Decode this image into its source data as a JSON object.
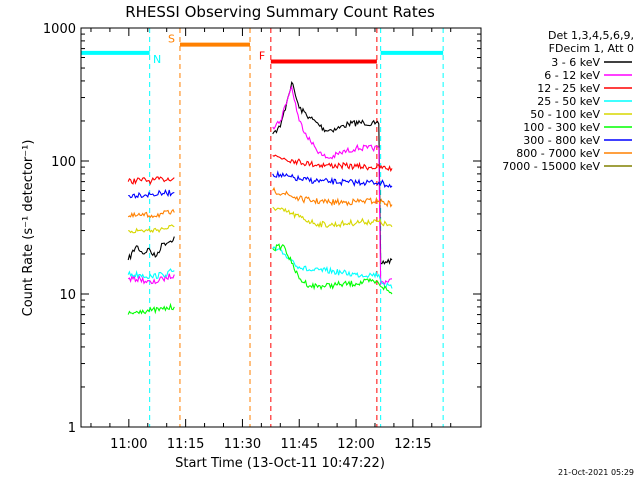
{
  "chart_data": {
    "type": "line",
    "title": "RHESSI Observing Summary Count Rates",
    "xlabel": "Start Time (13-Oct-11 10:47:22)",
    "ylabel": "Count Rate (s⁻¹ detector⁻¹)",
    "yscale": "log",
    "ylim": [
      1,
      1000
    ],
    "xlim": [
      "10:47:22",
      "12:33:00"
    ],
    "x_ticks": [
      "11:00",
      "11:15",
      "11:30",
      "11:45",
      "12:00",
      "12:15"
    ],
    "y_ticks": [
      "1",
      "10",
      "100",
      "1000"
    ],
    "legend_header": [
      "Det 1,3,4,5,6,9,",
      "FDecim 1, Att 0"
    ],
    "legend_position": "right",
    "footer": "21-Oct-2021 05:29",
    "series": [
      {
        "name": "3 - 6 keV",
        "color": "#000000",
        "points": [
          [
            "10:59:50",
            18
          ],
          [
            "11:02:00",
            23
          ],
          [
            "11:04:00",
            20
          ],
          [
            "11:05:00",
            22
          ],
          [
            "11:07:00",
            19
          ],
          [
            "11:09:00",
            24
          ],
          [
            "11:11:00",
            25
          ],
          [
            "11:12:00",
            27
          ],
          [
            "11:38:00",
            160
          ],
          [
            "11:40:00",
            180
          ],
          [
            "11:42:00",
            300
          ],
          [
            "11:43:00",
            390
          ],
          [
            "11:45:00",
            250
          ],
          [
            "11:48:00",
            210
          ],
          [
            "11:52:00",
            170
          ],
          [
            "11:55:00",
            175
          ],
          [
            "11:58:00",
            190
          ],
          [
            "12:02:00",
            195
          ],
          [
            "12:05:00",
            190
          ],
          [
            "12:06:00",
            190
          ],
          [
            "12:06:30",
            17
          ],
          [
            "12:09:30",
            18
          ]
        ]
      },
      {
        "name": "6 - 12 keV",
        "color": "#ff00ff",
        "points": [
          [
            "10:59:50",
            13
          ],
          [
            "11:03:00",
            13
          ],
          [
            "11:06:00",
            12
          ],
          [
            "11:09:00",
            13
          ],
          [
            "11:12:00",
            14
          ],
          [
            "11:38:00",
            180
          ],
          [
            "11:40:00",
            200
          ],
          [
            "11:42:00",
            300
          ],
          [
            "11:43:00",
            360
          ],
          [
            "11:45:00",
            200
          ],
          [
            "11:48:00",
            140
          ],
          [
            "11:51:00",
            110
          ],
          [
            "11:53:00",
            105
          ],
          [
            "11:56:00",
            115
          ],
          [
            "12:00:00",
            125
          ],
          [
            "12:03:00",
            125
          ],
          [
            "12:06:00",
            125
          ],
          [
            "12:06:30",
            12
          ],
          [
            "12:09:30",
            13
          ]
        ]
      },
      {
        "name": "12 - 25 keV",
        "color": "#ff0000",
        "points": [
          [
            "10:59:50",
            70
          ],
          [
            "11:03:00",
            72
          ],
          [
            "11:06:00",
            71
          ],
          [
            "11:09:00",
            73
          ],
          [
            "11:12:00",
            75
          ],
          [
            "11:38:00",
            110
          ],
          [
            "11:41:00",
            105
          ],
          [
            "11:44:00",
            100
          ],
          [
            "11:48:00",
            95
          ],
          [
            "11:52:00",
            93
          ],
          [
            "11:56:00",
            92
          ],
          [
            "12:00:00",
            91
          ],
          [
            "12:04:00",
            90
          ],
          [
            "12:09:30",
            88
          ]
        ]
      },
      {
        "name": "25 - 50 keV",
        "color": "#00ffff",
        "points": [
          [
            "10:59:50",
            14
          ],
          [
            "11:03:00",
            14
          ],
          [
            "11:06:00",
            13.5
          ],
          [
            "11:09:00",
            14
          ],
          [
            "11:12:00",
            15
          ],
          [
            "11:38:00",
            22
          ],
          [
            "11:41:00",
            20
          ],
          [
            "11:43:00",
            18
          ],
          [
            "11:45:00",
            16
          ],
          [
            "11:48:00",
            15
          ],
          [
            "11:52:00",
            15
          ],
          [
            "11:56:00",
            14.5
          ],
          [
            "12:00:00",
            14
          ],
          [
            "12:04:00",
            14
          ],
          [
            "12:06:00",
            14
          ],
          [
            "12:07:00",
            12
          ],
          [
            "12:09:30",
            11
          ]
        ]
      },
      {
        "name": "50 - 100 keV",
        "color": "#d7d700",
        "points": [
          [
            "10:59:50",
            30
          ],
          [
            "11:03:00",
            30
          ],
          [
            "11:06:00",
            30
          ],
          [
            "11:09:00",
            31
          ],
          [
            "11:12:00",
            32
          ],
          [
            "11:38:00",
            45
          ],
          [
            "11:41:00",
            42
          ],
          [
            "11:45:00",
            38
          ],
          [
            "11:49:00",
            34
          ],
          [
            "11:53:00",
            33
          ],
          [
            "11:58:00",
            34
          ],
          [
            "12:02:00",
            35
          ],
          [
            "12:06:00",
            35
          ],
          [
            "12:09:30",
            32
          ]
        ]
      },
      {
        "name": "100 - 300 keV",
        "color": "#00ff00",
        "points": [
          [
            "10:59:50",
            7
          ],
          [
            "11:03:00",
            7.5
          ],
          [
            "11:06:00",
            7.5
          ],
          [
            "11:09:00",
            7.7
          ],
          [
            "11:12:00",
            8
          ],
          [
            "11:38:00",
            22
          ],
          [
            "11:41:00",
            23
          ],
          [
            "11:43:00",
            17
          ],
          [
            "11:45:00",
            13
          ],
          [
            "11:48:00",
            11.5
          ],
          [
            "11:52:00",
            11.5
          ],
          [
            "11:56:00",
            11.8
          ],
          [
            "12:00:00",
            12
          ],
          [
            "12:04:00",
            12.5
          ],
          [
            "12:06:00",
            12
          ],
          [
            "12:09:30",
            10
          ]
        ]
      },
      {
        "name": "300 - 800 keV",
        "color": "#0000ff",
        "points": [
          [
            "10:59:50",
            55
          ],
          [
            "11:03:00",
            56
          ],
          [
            "11:06:00",
            56
          ],
          [
            "11:09:00",
            57
          ],
          [
            "11:12:00",
            58
          ],
          [
            "11:38:00",
            80
          ],
          [
            "11:41:00",
            77
          ],
          [
            "11:45:00",
            73
          ],
          [
            "11:49:00",
            71
          ],
          [
            "11:53:00",
            70
          ],
          [
            "11:58:00",
            69
          ],
          [
            "12:02:00",
            69
          ],
          [
            "12:06:00",
            69
          ],
          [
            "12:09:30",
            65
          ]
        ]
      },
      {
        "name": "800 - 7000 keV",
        "color": "#ff8000",
        "points": [
          [
            "10:59:50",
            38
          ],
          [
            "11:03:00",
            39
          ],
          [
            "11:06:00",
            39
          ],
          [
            "11:09:00",
            40
          ],
          [
            "11:12:00",
            41
          ],
          [
            "11:38:00",
            60
          ],
          [
            "11:41:00",
            57
          ],
          [
            "11:45:00",
            52
          ],
          [
            "11:49:00",
            50
          ],
          [
            "11:53:00",
            49
          ],
          [
            "11:58:00",
            49
          ],
          [
            "12:02:00",
            50
          ],
          [
            "12:06:00",
            50
          ],
          [
            "12:09:30",
            47
          ]
        ]
      },
      {
        "name": "7000 - 15000 keV",
        "color": "#808000",
        "points": []
      }
    ],
    "annotations": [
      {
        "label": "N",
        "color": "#00ffff",
        "type": "night",
        "bars": [
          [
            "10:47:22",
            "11:05:30"
          ],
          [
            "12:06:30",
            "12:23:00"
          ]
        ],
        "y": 650
      },
      {
        "label": "S",
        "color": "#ff8000",
        "type": "saa",
        "bars": [
          [
            "11:13:30",
            "11:32:00"
          ]
        ],
        "y": 750
      },
      {
        "label": "F",
        "color": "#ff0000",
        "type": "flare",
        "bars": [
          [
            "11:37:30",
            "12:05:30"
          ]
        ],
        "y": 560
      }
    ]
  }
}
